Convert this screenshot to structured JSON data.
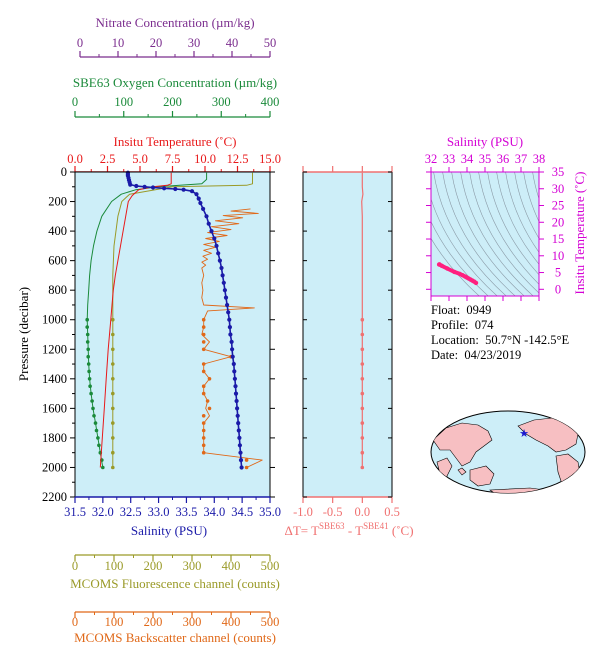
{
  "colors": {
    "nitrate": "#7b2d8e",
    "oxygen": "#1a8a3a",
    "temperature": "#e8191a",
    "salinity": "#1a1aa8",
    "fluorescence": "#9a9a28",
    "backscatter": "#e06818",
    "delta_t": "#f07070",
    "ts_axis": "#d400d4",
    "ts_curve": "#ff1f7f",
    "panel_bg": "#cdeef8"
  },
  "float_info": {
    "float_label": "Float:",
    "float_value": "0949",
    "profile_label": "Profile:",
    "profile_value": "074",
    "location_label": "Location:",
    "location_value": "50.7°N  -142.5°E",
    "date_label": "Date:",
    "date_value": "04/23/2019"
  },
  "chart_data": [
    {
      "type": "line",
      "panel": "main-profile",
      "y_axis": {
        "label": "Pressure (decibar)",
        "range": [
          2200,
          0
        ],
        "ticks": [
          0,
          200,
          400,
          600,
          800,
          1000,
          1200,
          1400,
          1600,
          1800,
          2000,
          2200
        ]
      },
      "axes": {
        "nitrate": {
          "title": "Nitrate Concentration (µm/kg)",
          "range": [
            0,
            50
          ],
          "ticks": [
            0,
            10,
            20,
            30,
            40,
            50
          ]
        },
        "oxygen": {
          "title": "SBE63 Oxygen Concentration (µm/kg)",
          "range": [
            0,
            400
          ],
          "ticks": [
            0,
            100,
            200,
            300,
            400
          ]
        },
        "temperature": {
          "title": "Insitu Temperature (˚C)",
          "range": [
            0,
            15
          ],
          "ticks": [
            "0.0",
            "2.5",
            "5.0",
            "7.5",
            "10.0",
            "12.5",
            "15.0"
          ]
        },
        "salinity": {
          "title": "Salinity (PSU)",
          "range": [
            31.5,
            35
          ],
          "ticks": [
            "31.5",
            "32.0",
            "32.5",
            "33.0",
            "33.5",
            "34.0",
            "34.5",
            "35.0"
          ]
        },
        "fluorescence": {
          "title": "MCOMS Fluorescence channel (counts)",
          "range": [
            0,
            500
          ],
          "ticks": [
            0,
            100,
            200,
            300,
            400,
            500
          ]
        },
        "backscatter": {
          "title": "MCOMS Backscatter channel (counts)",
          "range": [
            0,
            500
          ],
          "ticks": [
            0,
            100,
            200,
            300,
            400,
            500
          ]
        }
      },
      "series": {
        "salinity_pressure": [
          5,
          15,
          25,
          40,
          55,
          70,
          85,
          95,
          100,
          105,
          110,
          115,
          120,
          130,
          150,
          180,
          210,
          250,
          300,
          350,
          400,
          450,
          500,
          550,
          600,
          650,
          700,
          750,
          800,
          850,
          900,
          950,
          1000,
          1050,
          1100,
          1150,
          1200,
          1250,
          1300,
          1350,
          1400,
          1450,
          1500,
          1550,
          1600,
          1650,
          1700,
          1750,
          1800,
          1850,
          1900,
          1950,
          2000
        ],
        "salinity": [
          32.45,
          32.45,
          32.45,
          32.46,
          32.47,
          32.48,
          32.49,
          32.6,
          32.75,
          32.9,
          33.1,
          33.3,
          33.45,
          33.6,
          33.68,
          33.72,
          33.75,
          33.8,
          33.86,
          33.9,
          33.95,
          34.0,
          34.04,
          34.07,
          34.1,
          34.13,
          34.15,
          34.17,
          34.19,
          34.21,
          34.23,
          34.25,
          34.27,
          34.28,
          34.29,
          34.31,
          34.32,
          34.33,
          34.35,
          34.36,
          34.37,
          34.38,
          34.39,
          34.4,
          34.41,
          34.42,
          34.43,
          34.44,
          34.45,
          34.46,
          34.47,
          34.48,
          34.49
        ],
        "temperature_pressure": [
          5,
          50,
          80,
          90,
          100,
          120,
          160,
          200,
          300,
          400,
          500,
          600,
          700,
          800,
          900,
          1000,
          1200,
          1400,
          1600,
          1800,
          2000
        ],
        "temperature": [
          7.4,
          7.4,
          7.4,
          7.1,
          6.0,
          4.9,
          4.4,
          4.1,
          3.9,
          3.7,
          3.5,
          3.3,
          3.1,
          2.95,
          2.85,
          2.75,
          2.55,
          2.4,
          2.25,
          2.1,
          1.95
        ],
        "oxygen_pressure": [
          5,
          50,
          80,
          90,
          100,
          120,
          150,
          200,
          300,
          400,
          500,
          600,
          700,
          800,
          900,
          1000,
          1100,
          1200,
          1300,
          1400,
          1500,
          1600,
          1700,
          1800,
          1900,
          2000
        ],
        "oxygen": [
          270,
          270,
          260,
          215,
          170,
          125,
          95,
          75,
          55,
          45,
          38,
          33,
          30,
          28,
          26,
          25,
          26,
          27,
          28,
          30,
          33,
          37,
          42,
          47,
          52,
          57
        ],
        "oxygen_points": [
          [
            1000,
            25
          ],
          [
            1050,
            25
          ],
          [
            1100,
            26
          ],
          [
            1150,
            26
          ],
          [
            1200,
            27
          ],
          [
            1250,
            27
          ],
          [
            1300,
            28
          ],
          [
            1350,
            29
          ],
          [
            1400,
            30
          ],
          [
            1450,
            31
          ],
          [
            1500,
            33
          ],
          [
            1550,
            35
          ],
          [
            1600,
            37
          ],
          [
            1650,
            39
          ],
          [
            1700,
            42
          ],
          [
            1750,
            44
          ],
          [
            1800,
            47
          ],
          [
            1850,
            49
          ],
          [
            1900,
            52
          ],
          [
            1950,
            55
          ],
          [
            2000,
            57
          ]
        ],
        "fluorescence_pressure": [
          5,
          80,
          90,
          100,
          150,
          200,
          300,
          500,
          700,
          900,
          1000,
          1200,
          1400,
          1600,
          1800,
          2000
        ],
        "fluorescence": [
          455,
          455,
          440,
          250,
          140,
          120,
          110,
          100,
          97,
          97,
          97,
          97,
          97,
          97,
          97,
          97
        ],
        "fluorescence_points": [
          [
            1000,
            97
          ],
          [
            1100,
            97
          ],
          [
            1200,
            97
          ],
          [
            1300,
            97
          ],
          [
            1400,
            97
          ],
          [
            1500,
            97
          ],
          [
            1600,
            97
          ],
          [
            1700,
            97
          ],
          [
            1800,
            97
          ],
          [
            1900,
            97
          ],
          [
            2000,
            97
          ]
        ],
        "backscatter_pressure": [
          250,
          265,
          280,
          295,
          310,
          330,
          350,
          370,
          390,
          410,
          430,
          450,
          470,
          490,
          510,
          530,
          550,
          570,
          590,
          610,
          630,
          650,
          700,
          750,
          800,
          850,
          900,
          920,
          940,
          1000,
          1050,
          1100,
          1150,
          1200,
          1250,
          1300,
          1350,
          1400,
          1450,
          1500,
          1550,
          1600,
          1650,
          1700,
          1750,
          1800,
          1850,
          1900,
          1950,
          2000
        ],
        "backscatter": [
          450,
          400,
          470,
          380,
          430,
          360,
          420,
          350,
          400,
          340,
          390,
          335,
          370,
          330,
          360,
          330,
          350,
          328,
          340,
          325,
          335,
          325,
          330,
          325,
          328,
          325,
          330,
          460,
          340,
          330,
          330,
          325,
          345,
          330,
          400,
          330,
          330,
          345,
          330,
          330,
          340,
          335,
          345,
          330,
          330,
          330,
          330,
          330,
          480,
          440
        ],
        "backscatter_points": [
          [
            1000,
            330
          ],
          [
            1050,
            330
          ],
          [
            1100,
            330
          ],
          [
            1150,
            330
          ],
          [
            1200,
            330
          ],
          [
            1250,
            400
          ],
          [
            1300,
            330
          ],
          [
            1350,
            330
          ],
          [
            1400,
            345
          ],
          [
            1450,
            330
          ],
          [
            1500,
            330
          ],
          [
            1550,
            340
          ],
          [
            1600,
            345
          ],
          [
            1650,
            330
          ],
          [
            1700,
            330
          ],
          [
            1750,
            330
          ],
          [
            1800,
            330
          ],
          [
            1850,
            330
          ],
          [
            1900,
            330
          ],
          [
            1950,
            440
          ],
          [
            2000,
            440
          ]
        ]
      }
    },
    {
      "type": "line",
      "panel": "delta-t",
      "x_axis": {
        "label": "ΔT= T",
        "sup1": "SBE63",
        "mid": " - T",
        "sup2": "SBE41",
        "unit": " (˚C)",
        "range": [
          -1.0,
          0.5
        ],
        "ticks": [
          "-1.0",
          "-0.5",
          "0.0",
          "0.5"
        ]
      },
      "y_range": [
        2200,
        0
      ],
      "pressure": [
        5,
        50,
        100,
        150,
        200,
        300,
        500,
        700,
        900,
        1000,
        1100,
        1200,
        1300,
        1400,
        1500,
        1600,
        1700,
        1800,
        1900,
        2000
      ],
      "delta": [
        0.0,
        0.0,
        0.0,
        0.01,
        -0.01,
        0.0,
        0.0,
        0.0,
        0.0,
        0.0,
        0.0,
        0.0,
        0.0,
        0.0,
        0.0,
        0.0,
        0.0,
        0.0,
        0.0,
        0.0
      ],
      "points_from": 1000
    },
    {
      "type": "scatter",
      "panel": "ts-diagram",
      "x_axis": {
        "label": "Salinity (PSU)",
        "range": [
          32,
          38
        ],
        "ticks": [
          32,
          33,
          34,
          35,
          36,
          37,
          38
        ]
      },
      "y_axis": {
        "label": "Insitu Temperature (˚C)",
        "range": [
          -2,
          35
        ],
        "ticks": [
          0,
          5,
          10,
          15,
          20,
          25,
          30,
          35
        ]
      },
      "salinity": [
        32.45,
        32.48,
        32.6,
        32.9,
        33.3,
        33.6,
        33.75,
        33.9,
        34.0,
        34.1,
        34.2,
        34.3,
        34.4,
        34.5
      ],
      "temperature": [
        7.4,
        7.4,
        7.0,
        6.2,
        5.2,
        4.6,
        4.2,
        3.8,
        3.5,
        3.2,
        2.9,
        2.6,
        2.3,
        1.9
      ]
    }
  ]
}
